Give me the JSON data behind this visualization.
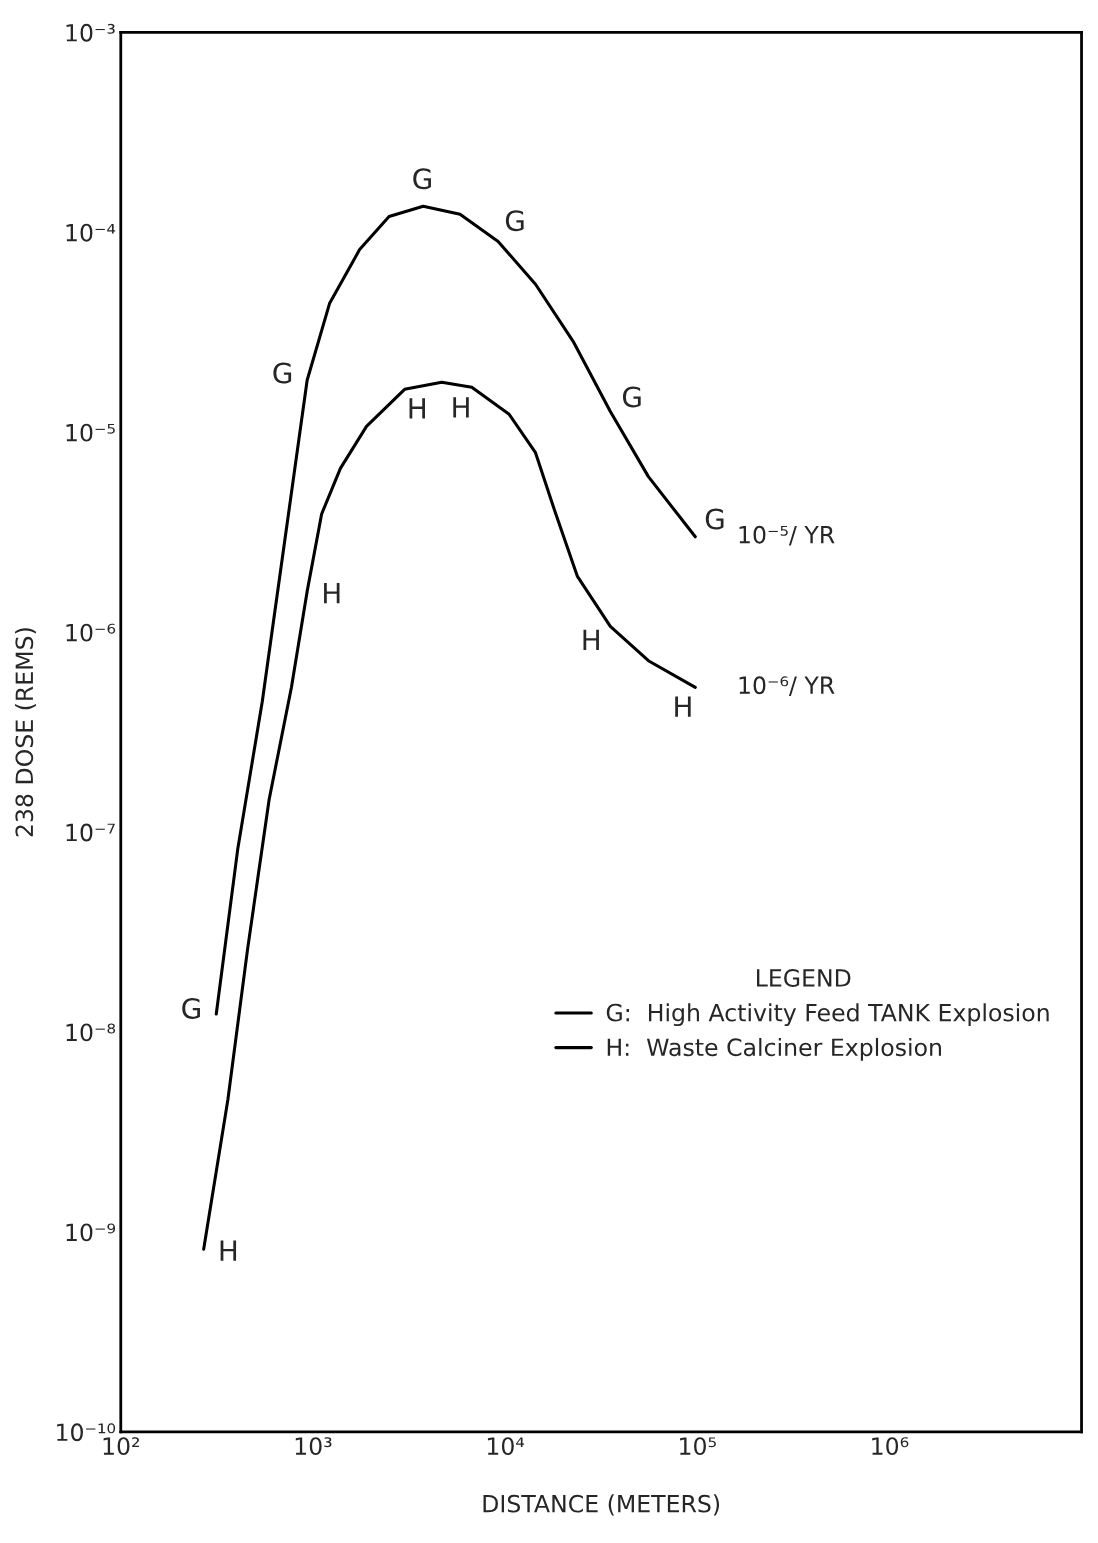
{
  "chart_data": {
    "type": "line",
    "xlabel": "DISTANCE (METERS)",
    "ylabel": "238 DOSE (REMS)",
    "log": "xy",
    "xlim": [
      100,
      10000000
    ],
    "ylim": [
      1e-10,
      0.001
    ],
    "xticks": [
      {
        "value": 100,
        "label": "10²"
      },
      {
        "value": 1000,
        "label": "10³"
      },
      {
        "value": 10000,
        "label": "10⁴"
      },
      {
        "value": 100000,
        "label": "10⁵"
      },
      {
        "value": 1000000,
        "label": "10⁶"
      }
    ],
    "yticks": [
      {
        "value": 1e-10,
        "label": "10⁻¹⁰"
      },
      {
        "value": 1e-09,
        "label": "10⁻⁹"
      },
      {
        "value": 1e-08,
        "label": "10⁻⁸"
      },
      {
        "value": 1e-07,
        "label": "10⁻⁷"
      },
      {
        "value": 1e-06,
        "label": "10⁻⁶"
      },
      {
        "value": 1e-05,
        "label": "10⁻⁵"
      },
      {
        "value": 0.0001,
        "label": "10⁻⁴"
      },
      {
        "value": 0.001,
        "label": "10⁻³"
      }
    ],
    "grid": false,
    "legend": "bottom right",
    "legend_title": "LEGEND",
    "marker": "none",
    "line_style": "solid",
    "series": [
      {
        "name": "G:  High Activity Feed TANK Explosion",
        "color": "#000000",
        "x": [
          314,
          406,
          545,
          746,
          933,
          1220,
          1750,
          2490,
          3750,
          5830,
          9200,
          14400,
          22600,
          35300,
          55700,
          97700
        ],
        "values": [
          1.23e-08,
          8.2e-08,
          4.5e-07,
          3.9e-06,
          1.82e-05,
          4.4e-05,
          8.2e-05,
          0.00012,
          0.000135,
          0.000123,
          9e-05,
          5.5e-05,
          2.85e-05,
          1.27e-05,
          6e-06,
          3e-06
        ]
      },
      {
        "name": "H:  Waste Calciner Explosion",
        "color": "#000000",
        "x": [
          270,
          361,
          457,
          592,
          773,
          933,
          1110,
          1390,
          1900,
          3000,
          4680,
          6710,
          10500,
          14400,
          18200,
          23800,
          35300,
          55700,
          97700
        ],
        "values": [
          8.2e-10,
          4.6e-09,
          2.6e-08,
          1.46e-07,
          5.3e-07,
          1.6e-06,
          3.9e-06,
          6.6e-06,
          1.07e-05,
          1.64e-05,
          1.78e-05,
          1.68e-05,
          1.23e-05,
          7.9e-06,
          4e-06,
          1.9e-06,
          1.07e-06,
          7.2e-07,
          5.3e-07
        ]
      }
    ],
    "annotations": [
      {
        "text": "G",
        "x": 3750,
        "y": 0.000135
      },
      {
        "text": "G",
        "x": 9200,
        "y": 9e-05
      },
      {
        "text": "G",
        "x": 933,
        "y": 1.82e-05
      },
      {
        "text": "G",
        "x": 35300,
        "y": 1.27e-05
      },
      {
        "text": "G",
        "x": 97700,
        "y": 3e-06
      },
      {
        "text": "G",
        "x": 314,
        "y": 1.23e-08
      },
      {
        "text": "H",
        "x": 3000,
        "y": 1.64e-05
      },
      {
        "text": "H",
        "x": 6710,
        "y": 1.68e-05
      },
      {
        "text": "H",
        "x": 933,
        "y": 1.6e-06
      },
      {
        "text": "H",
        "x": 35300,
        "y": 1.07e-06
      },
      {
        "text": "H",
        "x": 97700,
        "y": 5.3e-07
      },
      {
        "text": "H",
        "x": 270,
        "y": 8.2e-10
      },
      {
        "text": "10⁻⁵/ YR",
        "x": 97700,
        "y": 3e-06
      },
      {
        "text": "10⁻⁶/ YR",
        "x": 97700,
        "y": 5.3e-07
      }
    ]
  }
}
